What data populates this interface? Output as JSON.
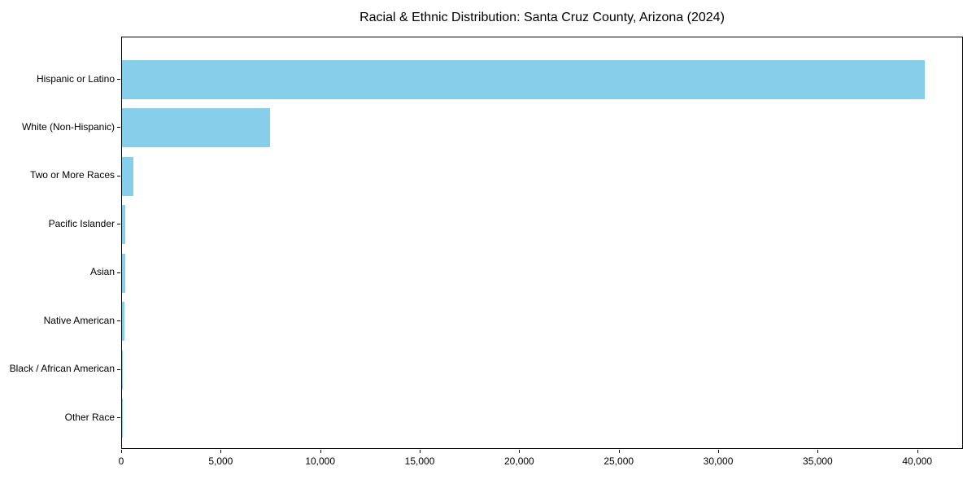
{
  "chart_data": {
    "type": "bar",
    "orientation": "horizontal",
    "title": "Racial & Ethnic Distribution: Santa Cruz County, Arizona (2024)",
    "categories": [
      "Hispanic or Latino",
      "White (Non-Hispanic)",
      "Two or More Races",
      "Pacific Islander",
      "Asian",
      "Native American",
      "Black / African American",
      "Other Race"
    ],
    "values": [
      40330,
      7440,
      560,
      175,
      168,
      108,
      40,
      12
    ],
    "xlabel": "",
    "ylabel": "",
    "xlim": [
      0,
      42300
    ],
    "xticks": [
      0,
      5000,
      10000,
      15000,
      20000,
      25000,
      30000,
      35000,
      40000
    ],
    "xtick_labels": [
      "0",
      "5,000",
      "10,000",
      "15,000",
      "20,000",
      "25,000",
      "30,000",
      "35,000",
      "40,000"
    ],
    "bar_color": "#87CEEB",
    "grid": false,
    "legend": null,
    "plot_border_color": "#000000",
    "background_color": "#FFFFFF"
  }
}
